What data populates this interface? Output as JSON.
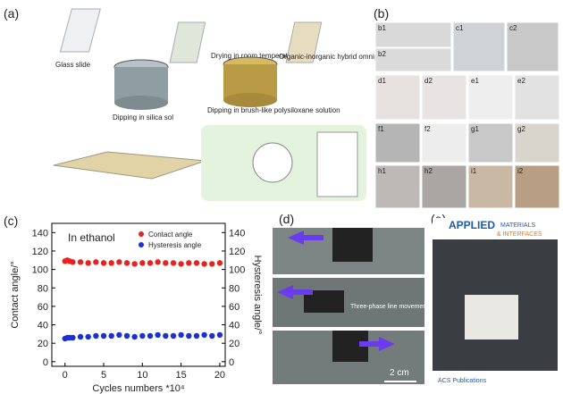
{
  "panel_labels": [
    "(a)",
    "(b)",
    "(c)",
    "(d)",
    "(e)"
  ],
  "panel_a": {
    "steps": [
      "Glass slide",
      "Dipping in silica sol",
      "Drying in room temperature",
      "Dipping in brush-like polysiloxane solution",
      "Organic-inorganic hybrid omniphobic surfaces"
    ]
  },
  "panel_b": {
    "photo_labels": [
      "b1",
      "c1",
      "c2",
      "b2",
      "d1",
      "d2",
      "e1",
      "e2",
      "f1",
      "f2",
      "g1",
      "g2",
      "h1",
      "h2",
      "i1",
      "i2"
    ]
  },
  "chart_data": {
    "type": "scatter",
    "annotation": "In ethanol",
    "x_label": "Cycles numbers *10⁴",
    "y_label": "Contact angle/°",
    "y2_label": "Hysteresis angle/°",
    "xlim": [
      -1.7,
      20.7
    ],
    "xticks": [
      0,
      5,
      10,
      15,
      20
    ],
    "ylim": [
      -5,
      150
    ],
    "yticks": [
      0,
      20,
      40,
      60,
      80,
      100,
      120,
      140
    ],
    "y2lim": [
      -5,
      150
    ],
    "y2ticks": [
      0,
      20,
      40,
      60,
      80,
      100,
      120,
      140
    ],
    "x": [
      0,
      0.3,
      0.6,
      1,
      2,
      3,
      4,
      5,
      6,
      7,
      8,
      9,
      10,
      11,
      12,
      13,
      14,
      15,
      16,
      17,
      18,
      19,
      20
    ],
    "series": [
      {
        "name": "Contact angle",
        "color": "#e8231f",
        "values": [
          109,
          110,
          109,
          108,
          108,
          107,
          108,
          107,
          107,
          108,
          107,
          106,
          107,
          107,
          108,
          107,
          107,
          106,
          107,
          107,
          106,
          106,
          107
        ]
      },
      {
        "name": "Hysteresis angle",
        "color": "#1a2fd6",
        "axis": "y2",
        "values": [
          25,
          26,
          26,
          26,
          27,
          27,
          28,
          28,
          28,
          29,
          28,
          27,
          28,
          28,
          29,
          28,
          28,
          29,
          28,
          28,
          29,
          28,
          29
        ]
      }
    ]
  },
  "panel_d": {
    "annotation": "Three-phase line movement",
    "scale_bar": "2 cm"
  },
  "panel_e": {
    "journal": [
      "APPLIED",
      "MATERIALS",
      "& INTERFACES"
    ],
    "publisher": "ACS Publications"
  }
}
